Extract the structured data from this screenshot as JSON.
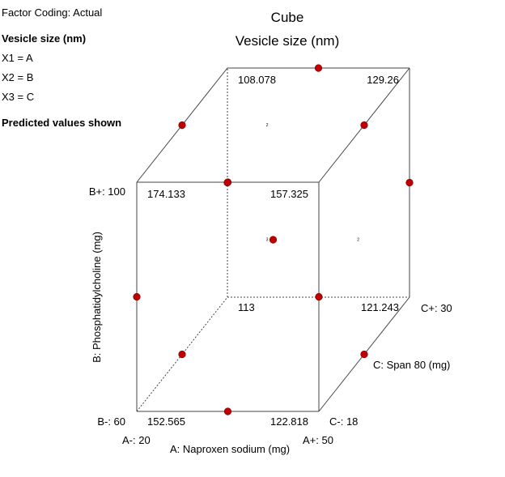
{
  "factor_coding": "Factor Coding: Actual",
  "response_label": "Vesicle size (nm)",
  "factor_map": [
    "X1 = A",
    "X2 = B",
    "X3 = C"
  ],
  "predicted_note": "Predicted values shown",
  "colors": {
    "point": "#c00000",
    "edge": "#444444"
  },
  "chart_data": {
    "type": "cube",
    "title": "Cube",
    "subtitle": "Vesicle size (nm)",
    "factors": {
      "A": {
        "label": "A: Naproxen sodium (mg)",
        "low_label": "A-: 20",
        "high_label": "A+: 50",
        "low": 20,
        "high": 50
      },
      "B": {
        "label": "B: Phosphatidylcholine (mg)",
        "low_label": "B-: 60",
        "high_label": "B+: 100",
        "low": 60,
        "high": 100
      },
      "C": {
        "label": "C: Span 80 (mg)",
        "low_label": "C-: 18",
        "high_label": "C+: 30",
        "low": 18,
        "high": 30
      }
    },
    "corners": [
      {
        "A": "-",
        "B": "-",
        "C": "-",
        "value": "152.565"
      },
      {
        "A": "+",
        "B": "-",
        "C": "-",
        "value": "122.818"
      },
      {
        "A": "-",
        "B": "+",
        "C": "-",
        "value": "174.133"
      },
      {
        "A": "+",
        "B": "+",
        "C": "-",
        "value": "157.325"
      },
      {
        "A": "-",
        "B": "-",
        "C": "+",
        "value": "113"
      },
      {
        "A": "+",
        "B": "-",
        "C": "+",
        "value": "121.243"
      },
      {
        "A": "-",
        "B": "+",
        "C": "+",
        "value": "108.078"
      },
      {
        "A": "+",
        "B": "+",
        "C": "+",
        "value": "129.26"
      }
    ],
    "design_points": [
      {
        "A": 0,
        "B": -1,
        "C": -1
      },
      {
        "A": 0,
        "B": 1,
        "C": -1
      },
      {
        "A": 0,
        "B": 1,
        "C": 1
      },
      {
        "A": -1,
        "B": 0,
        "C": -1
      },
      {
        "A": 1,
        "B": 0,
        "C": 1
      },
      {
        "A": -1,
        "B": -1,
        "C": 0
      },
      {
        "A": -1,
        "B": 1,
        "C": 0
      },
      {
        "A": 1,
        "B": 1,
        "C": 0
      },
      {
        "A": 1,
        "B": -1,
        "C": 0
      },
      {
        "A": 0,
        "B": 0,
        "C": 0
      },
      {
        "A": -1,
        "B": 0,
        "C": 1
      },
      {
        "A": 1,
        "B": 0,
        "C": -1
      }
    ],
    "replicate_counts": [
      {
        "A": 0,
        "B": 1,
        "C": 0,
        "count": "2"
      },
      {
        "A": 0,
        "B": 0,
        "C": 0,
        "count": "3"
      },
      {
        "A": 1,
        "B": 0,
        "C": 0,
        "count": "2"
      }
    ]
  }
}
